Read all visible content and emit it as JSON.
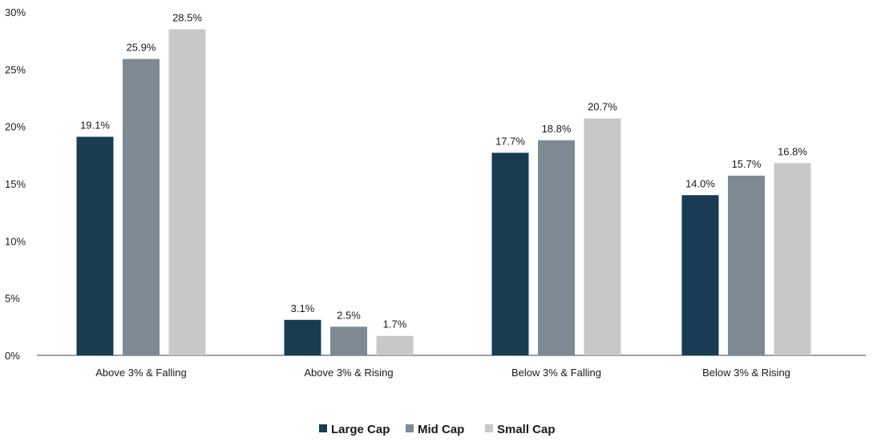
{
  "chart_data": {
    "type": "bar",
    "title": "",
    "xlabel": "",
    "ylabel": "",
    "ylim": [
      0,
      30
    ],
    "yticks": [
      0,
      5,
      10,
      15,
      20,
      25,
      30
    ],
    "ytick_labels": [
      "0%",
      "5%",
      "10%",
      "15%",
      "20%",
      "25%",
      "30%"
    ],
    "grid": false,
    "legend_position": "bottom-center",
    "categories": [
      "Above 3% & Falling",
      "Above 3% & Rising",
      "Below 3% & Falling",
      "Below 3% & Rising"
    ],
    "series": [
      {
        "name": "Large Cap",
        "color": "#173c53",
        "values": [
          19.1,
          3.1,
          17.7,
          14.0
        ],
        "labels": [
          "19.1%",
          "3.1%",
          "17.7%",
          "14.0%"
        ]
      },
      {
        "name": "Mid Cap",
        "color": "#7d8a94",
        "values": [
          25.9,
          2.5,
          18.8,
          15.7
        ],
        "labels": [
          "25.9%",
          "2.5%",
          "18.8%",
          "15.7%"
        ]
      },
      {
        "name": "Small Cap",
        "color": "#c8c8c8",
        "values": [
          28.5,
          1.7,
          20.7,
          16.8
        ],
        "labels": [
          "28.5%",
          "1.7%",
          "20.7%",
          "16.8%"
        ]
      }
    ]
  }
}
